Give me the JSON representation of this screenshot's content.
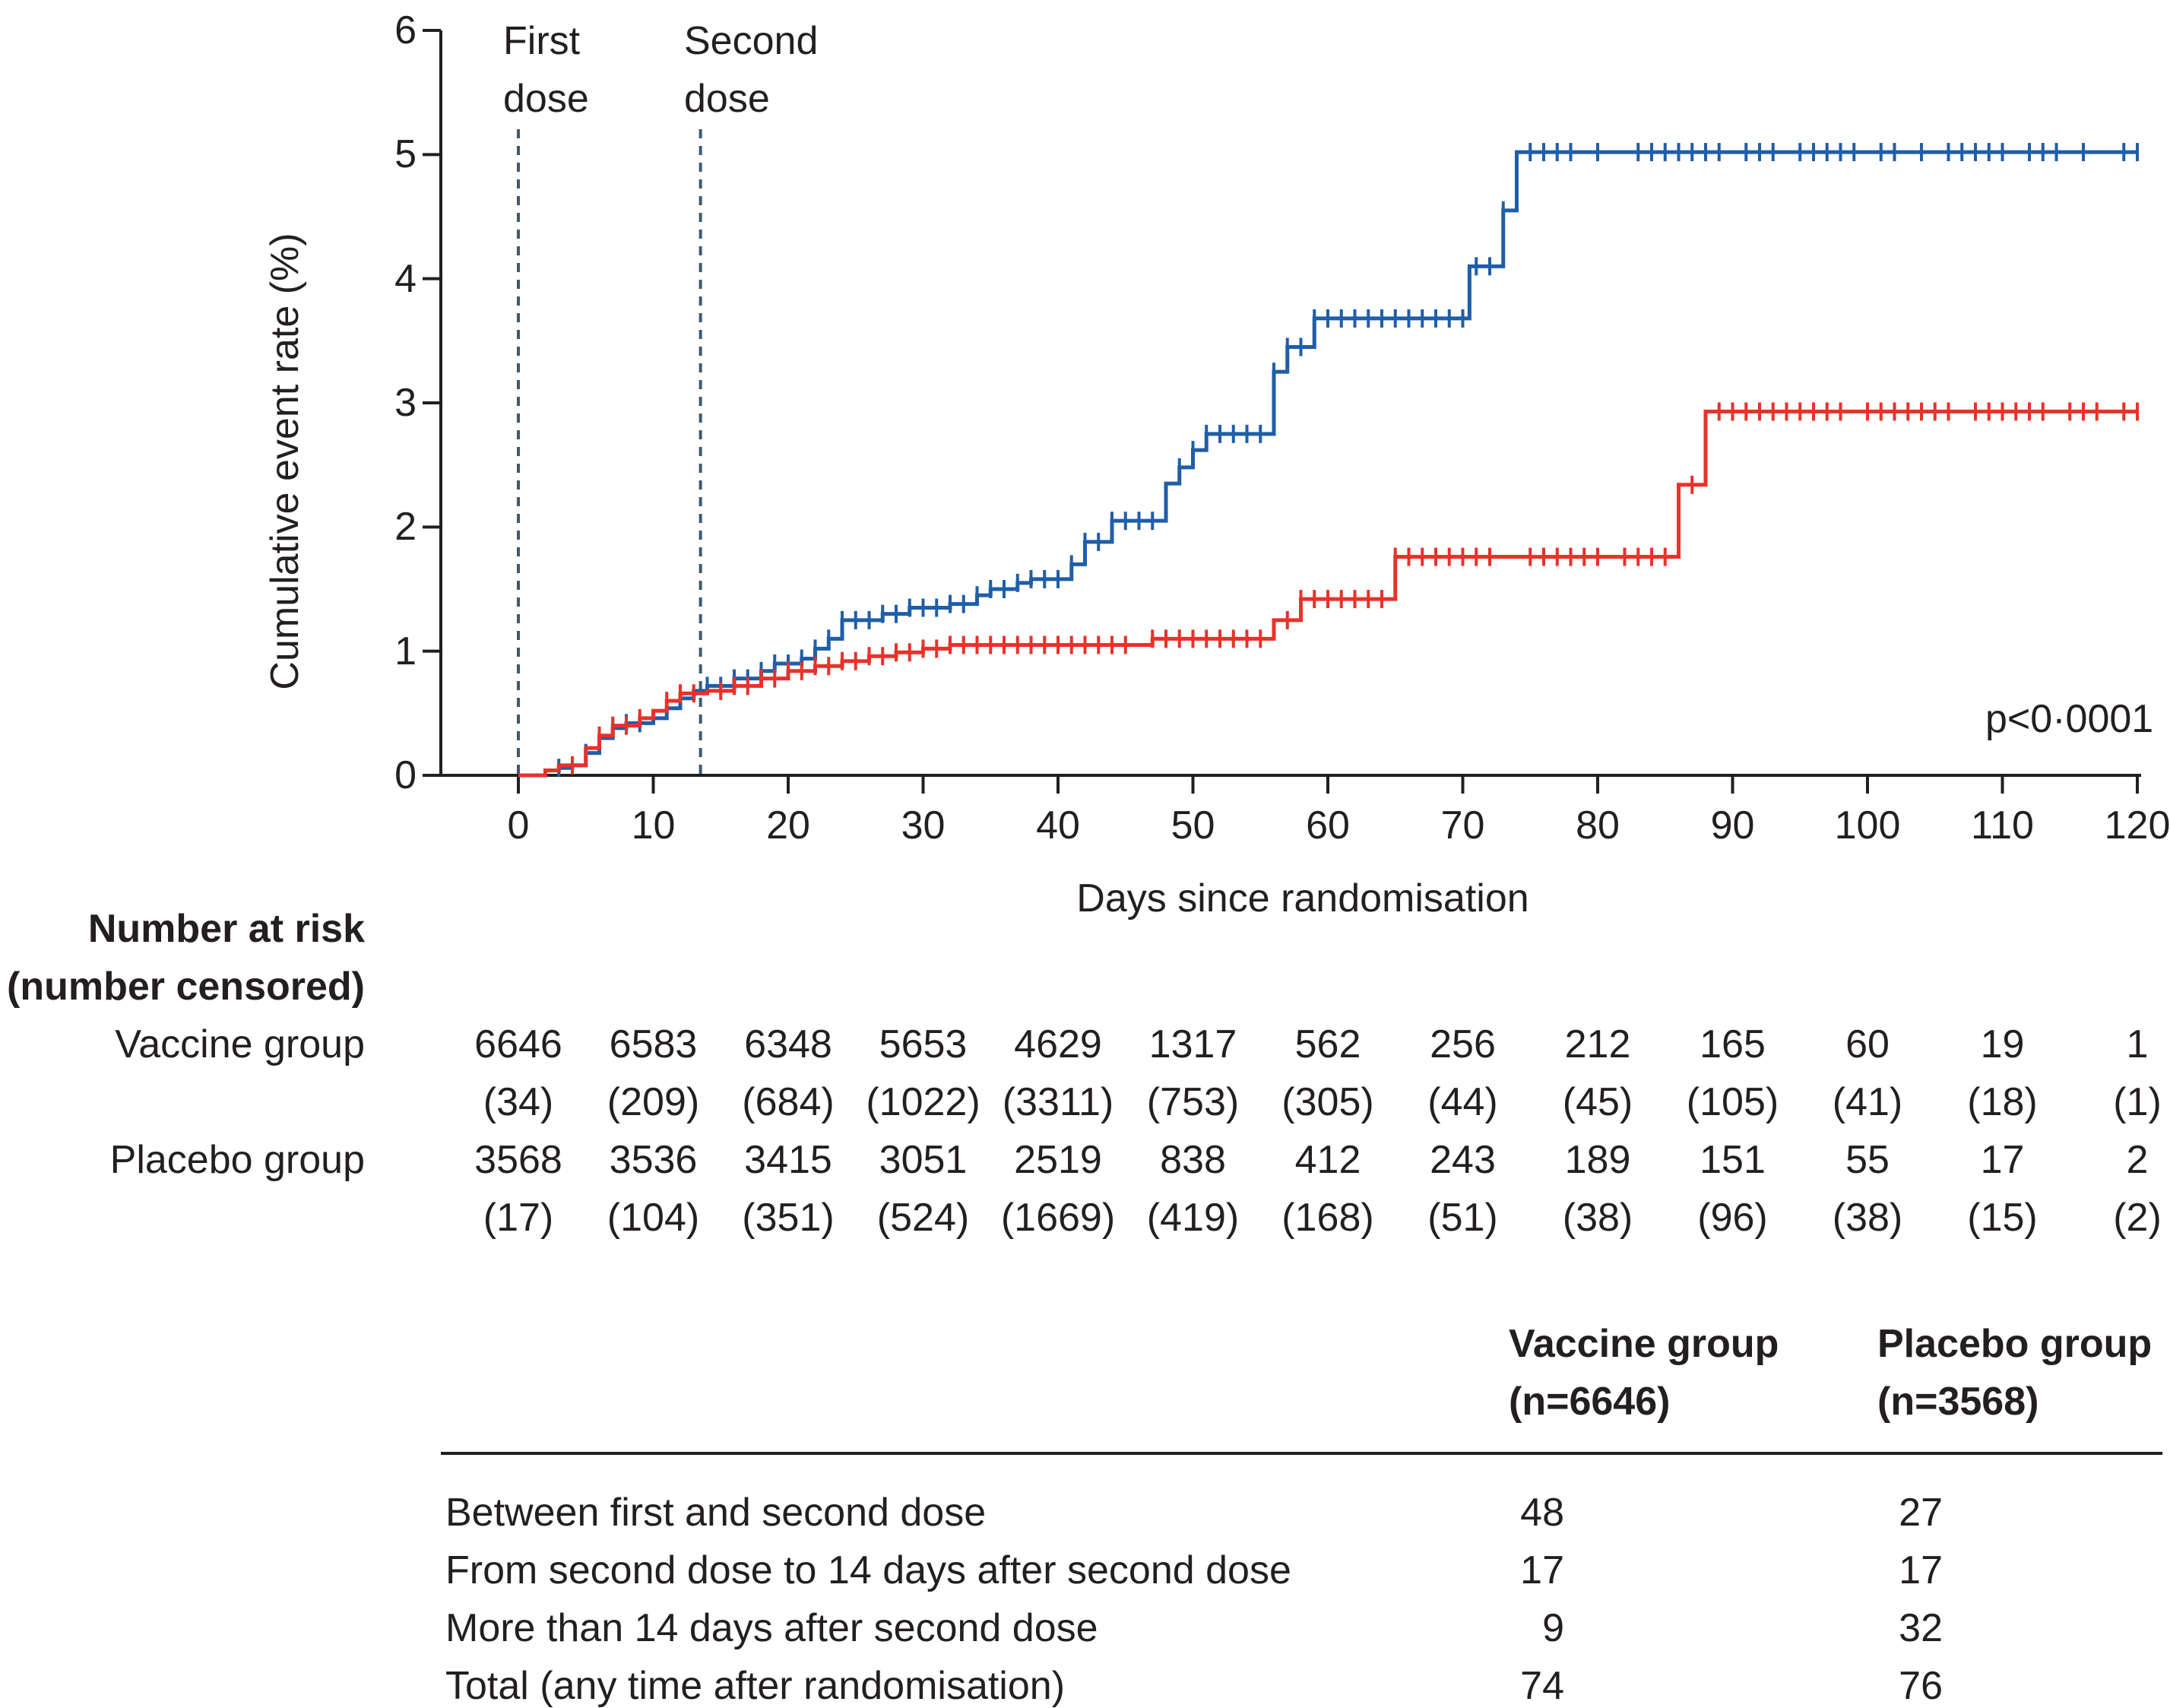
{
  "chart_data": {
    "type": "line",
    "subtype": "kaplan-meier-cumulative-incidence",
    "xlabel": "Days since randomisation",
    "ylabel": "Cumulative event rate (%)",
    "xlim": [
      0,
      120
    ],
    "ylim": [
      0,
      6
    ],
    "xticks": [
      "0",
      "10",
      "20",
      "30",
      "40",
      "50",
      "60",
      "70",
      "80",
      "90",
      "100",
      "110",
      "120"
    ],
    "yticks": [
      "0",
      "1",
      "2",
      "3",
      "4",
      "5",
      "6"
    ],
    "annotations": {
      "first_dose": {
        "label_line1": "First",
        "label_line2": "dose",
        "day": 0
      },
      "second_dose": {
        "label_line1": "Second",
        "label_line2": "dose",
        "day": 13.5
      },
      "p_value": "p<0·0001"
    },
    "colors": {
      "vaccine": "#1f5ea8",
      "placebo": "#e8322a",
      "dose_line": "#3d5a6e",
      "axis": "#231f20"
    },
    "series": [
      {
        "name": "Vaccine group",
        "color": "#1f5ea8",
        "steps": [
          [
            0,
            0
          ],
          [
            2,
            0.04
          ],
          [
            3,
            0.06
          ],
          [
            4,
            0.08
          ],
          [
            5,
            0.18
          ],
          [
            6,
            0.3
          ],
          [
            7,
            0.38
          ],
          [
            8,
            0.42
          ],
          [
            10,
            0.46
          ],
          [
            11,
            0.54
          ],
          [
            12,
            0.62
          ],
          [
            13,
            0.68
          ],
          [
            14,
            0.72
          ],
          [
            16,
            0.78
          ],
          [
            18,
            0.84
          ],
          [
            19,
            0.9
          ],
          [
            21,
            0.94
          ],
          [
            22,
            1.02
          ],
          [
            23,
            1.1
          ],
          [
            24,
            1.25
          ],
          [
            27,
            1.3
          ],
          [
            29,
            1.35
          ],
          [
            32,
            1.38
          ],
          [
            34,
            1.45
          ],
          [
            35,
            1.5
          ],
          [
            37,
            1.55
          ],
          [
            38,
            1.58
          ],
          [
            41,
            1.7
          ],
          [
            42,
            1.88
          ],
          [
            44,
            2.05
          ],
          [
            48,
            2.35
          ],
          [
            49,
            2.48
          ],
          [
            50,
            2.62
          ],
          [
            51,
            2.75
          ],
          [
            56,
            3.25
          ],
          [
            57,
            3.45
          ],
          [
            59,
            3.68
          ],
          [
            70.5,
            4.1
          ],
          [
            73,
            4.55
          ],
          [
            74,
            5.02
          ],
          [
            120,
            5.02
          ]
        ],
        "censor_days": [
          3,
          4,
          5,
          7,
          8,
          9,
          11,
          12,
          14,
          15,
          16,
          17,
          18,
          19,
          20,
          21,
          22,
          23,
          24,
          25,
          26,
          27,
          28,
          29,
          30,
          31,
          32,
          33,
          34,
          35,
          36,
          37,
          38,
          39,
          40,
          41,
          42,
          43,
          44,
          45,
          46,
          47,
          49,
          50,
          51,
          52,
          53,
          54,
          55,
          56,
          57,
          58,
          59,
          60,
          61,
          62,
          63,
          64,
          65,
          66,
          67,
          68,
          69,
          70,
          71,
          72,
          73,
          75,
          76,
          77,
          78,
          80,
          83,
          84,
          85,
          86,
          87,
          88,
          89,
          91,
          92,
          93,
          95,
          96,
          97,
          98,
          99,
          101,
          102,
          104,
          106,
          107,
          108,
          109,
          110,
          112,
          113,
          114,
          116,
          119,
          120
        ],
        "risk": [
          "6646",
          "6583",
          "6348",
          "5653",
          "4629",
          "1317",
          "562",
          "256",
          "212",
          "165",
          "60",
          "19",
          "1"
        ],
        "censored": [
          "(34)",
          "(209)",
          "(684)",
          "(1022)",
          "(3311)",
          "(753)",
          "(305)",
          "(44)",
          "(45)",
          "(105)",
          "(41)",
          "(18)",
          "(1)"
        ]
      },
      {
        "name": "Placebo group",
        "color": "#e8322a",
        "steps": [
          [
            0,
            0
          ],
          [
            2,
            0.04
          ],
          [
            3,
            0.08
          ],
          [
            5,
            0.22
          ],
          [
            6,
            0.32
          ],
          [
            7,
            0.4
          ],
          [
            9,
            0.46
          ],
          [
            10,
            0.52
          ],
          [
            11,
            0.6
          ],
          [
            12,
            0.66
          ],
          [
            14,
            0.68
          ],
          [
            16,
            0.72
          ],
          [
            18,
            0.78
          ],
          [
            20,
            0.84
          ],
          [
            22,
            0.88
          ],
          [
            24,
            0.92
          ],
          [
            26,
            0.96
          ],
          [
            28,
            0.99
          ],
          [
            30,
            1.02
          ],
          [
            32,
            1.05
          ],
          [
            47,
            1.1
          ],
          [
            56,
            1.25
          ],
          [
            58,
            1.42
          ],
          [
            65,
            1.76
          ],
          [
            86,
            2.34
          ],
          [
            88,
            2.93
          ],
          [
            120,
            2.93
          ]
        ],
        "censor_days": [
          4,
          6,
          7,
          8,
          9,
          11,
          12,
          13,
          15,
          16,
          17,
          18,
          19,
          20,
          21,
          22,
          23,
          24,
          25,
          26,
          27,
          28,
          29,
          30,
          31,
          32,
          33,
          34,
          35,
          36,
          37,
          38,
          39,
          40,
          41,
          42,
          43,
          44,
          45,
          47,
          48,
          49,
          50,
          51,
          52,
          53,
          54,
          55,
          57,
          58,
          59,
          60,
          61,
          62,
          63,
          64,
          65,
          66,
          67,
          68,
          69,
          70,
          71,
          72,
          75,
          76,
          77,
          78,
          79,
          80,
          82,
          83,
          84,
          85,
          87,
          89,
          90,
          91,
          92,
          93,
          94,
          95,
          96,
          97,
          98,
          100,
          101,
          102,
          103,
          104,
          105,
          106,
          108,
          109,
          110,
          111,
          112,
          113,
          115,
          116,
          117,
          119,
          120
        ]
      }
    ]
  },
  "risk_table": {
    "title_line1": "Number at risk",
    "title_line2": "(number censored)",
    "vaccine_label": "Vaccine group",
    "placebo_label": "Placebo group",
    "placebo_risk": [
      "3568",
      "3536",
      "3415",
      "3051",
      "2519",
      "838",
      "412",
      "243",
      "189",
      "151",
      "55",
      "17",
      "2"
    ],
    "placebo_censored": [
      "(17)",
      "(104)",
      "(351)",
      "(524)",
      "(1669)",
      "(419)",
      "(168)",
      "(51)",
      "(38)",
      "(96)",
      "(38)",
      "(15)",
      "(2)"
    ]
  },
  "summary_table": {
    "col_vaccine_line1": "Vaccine group",
    "col_vaccine_line2": "(n=6646)",
    "col_placebo_line1": "Placebo group",
    "col_placebo_line2": "(n=3568)",
    "rows": [
      {
        "label": "Between first and second dose",
        "vaccine": "48",
        "placebo": "27"
      },
      {
        "label": "From second dose to 14 days after second dose",
        "vaccine": "17",
        "placebo": "17"
      },
      {
        "label": "More than 14 days after second dose",
        "vaccine": "9",
        "placebo": "32"
      },
      {
        "label": "Total (any time after randomisation)",
        "vaccine": "74",
        "placebo": "76"
      }
    ]
  }
}
